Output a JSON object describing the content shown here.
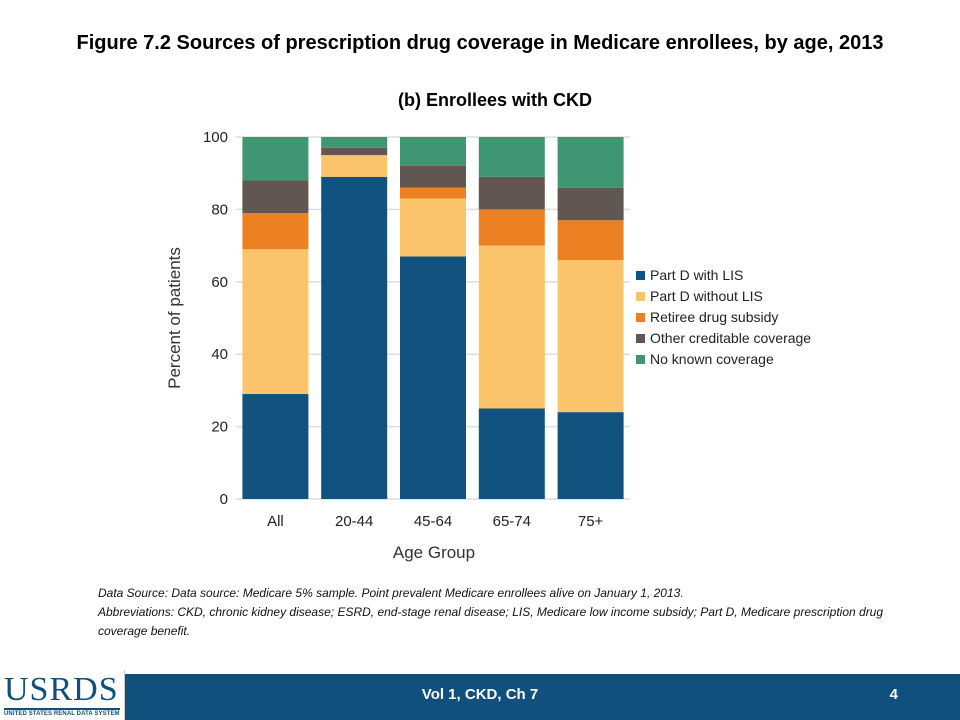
{
  "figure_title": "Figure 7.2 Sources of prescription drug coverage in Medicare enrollees, by age, 2013",
  "chart_data": {
    "type": "bar",
    "stacked": true,
    "title": "(b) Enrollees with CKD",
    "xlabel": "Age Group",
    "ylabel": "Percent of patients",
    "ylim": [
      0,
      100
    ],
    "yticks": [
      0,
      20,
      40,
      60,
      80,
      100
    ],
    "grid": true,
    "legend_position": "right",
    "categories": [
      "All",
      "20-44",
      "45-64",
      "65-74",
      "75+"
    ],
    "series": [
      {
        "name": "Part D with LIS",
        "color": "#11537e",
        "values": [
          29,
          89,
          67,
          25,
          24
        ]
      },
      {
        "name": "Part D without LIS",
        "color": "#fcc46a",
        "values": [
          40,
          6,
          16,
          45,
          42
        ]
      },
      {
        "name": "Retiree drug subsidy",
        "color": "#ec8123",
        "values": [
          10,
          0,
          3,
          10,
          11
        ]
      },
      {
        "name": "Other creditable coverage",
        "color": "#625750",
        "values": [
          9,
          2,
          6,
          9,
          9
        ]
      },
      {
        "name": "No known coverage",
        "color": "#3f9672",
        "values": [
          12,
          3,
          8,
          11,
          14
        ]
      }
    ]
  },
  "footnote": {
    "line1": "Data Source: Data source: Medicare 5% sample. Point prevalent Medicare enrollees alive on January 1, 2013.",
    "line2": "Abbreviations: CKD, chronic kidney disease; ESRD, end-stage renal disease; LIS, Medicare low income subsidy; Part D, Medicare prescription drug coverage benefit."
  },
  "footer": {
    "center": "Vol 1, CKD, Ch 7",
    "page": "4",
    "logo_text": "USRDS",
    "logo_subtext": "UNITED STATES RENAL DATA SYSTEM"
  },
  "colors": {
    "footer_bar": "#0f517c",
    "grid": "#dddddd"
  }
}
